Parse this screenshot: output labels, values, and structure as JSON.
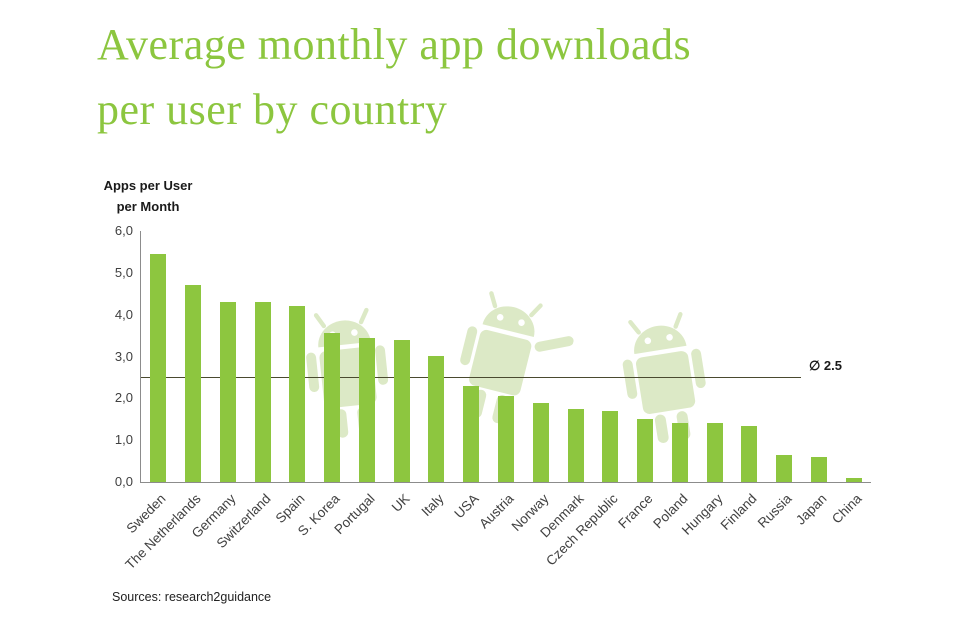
{
  "title": {
    "line1": "Average monthly app downloads",
    "line2": "per user by country"
  },
  "y_axis_title": {
    "line1": "Apps per User",
    "line2": "per Month"
  },
  "source": "Sources: research2guidance",
  "icons": {
    "watermark": "android-robot-icon"
  },
  "colors": {
    "bar": "#8DC63F",
    "title": "#8CC63F",
    "average_line": "#4A4A2F",
    "watermark": "#DBE8C3",
    "axis": "#8C8C8C"
  },
  "chart_data": {
    "type": "bar",
    "title": "Average monthly app downloads per user by country",
    "xlabel": "",
    "ylabel": "Apps per User per Month",
    "categories": [
      "Sweden",
      "The Netherlands",
      "Germany",
      "Switzerland",
      "Spain",
      "S. Korea",
      "Portugal",
      "UK",
      "Italy",
      "USA",
      "Austria",
      "Norway",
      "Denmark",
      "Czech Republic",
      "France",
      "Poland",
      "Hungary",
      "Finland",
      "Russia",
      "Japan",
      "China"
    ],
    "values": [
      5.45,
      4.7,
      4.3,
      4.3,
      4.2,
      3.55,
      3.45,
      3.4,
      3.0,
      2.3,
      2.05,
      1.9,
      1.75,
      1.7,
      1.5,
      1.4,
      1.4,
      1.35,
      0.65,
      0.6,
      0.1
    ],
    "ylim": [
      0,
      6
    ],
    "ytick_labels": [
      "0,0",
      "1,0",
      "2,0",
      "3,0",
      "4,0",
      "5,0",
      "6,0"
    ],
    "ytick_values": [
      0,
      1,
      2,
      3,
      4,
      5,
      6
    ],
    "average_line": {
      "value": 2.5,
      "label": "∅ 2.5"
    },
    "grid": false,
    "legend": false
  }
}
